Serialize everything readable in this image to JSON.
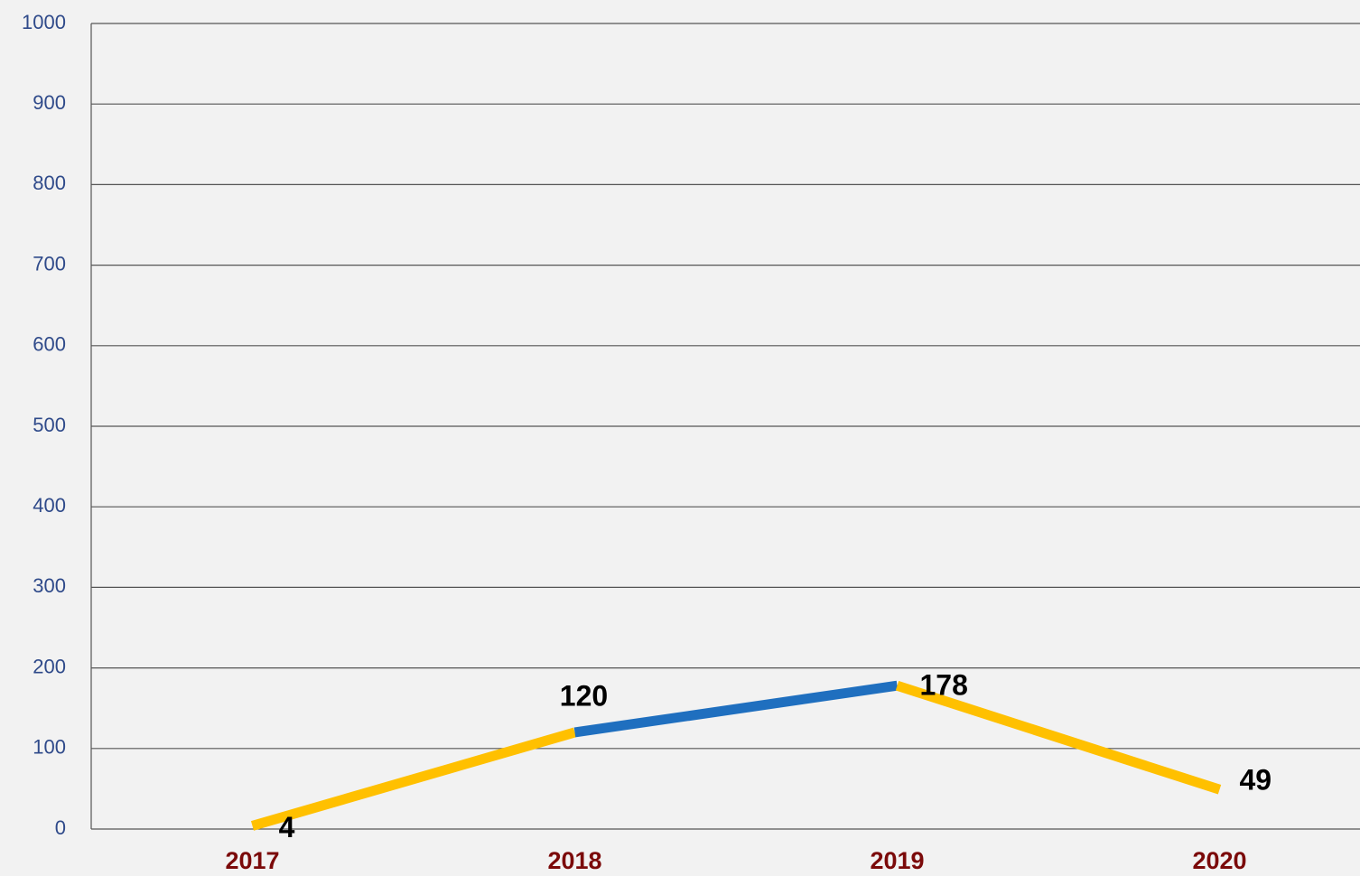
{
  "chart_data": {
    "type": "line",
    "categories": [
      "2017",
      "2018",
      "2019",
      "2020"
    ],
    "values": [
      4,
      120,
      178,
      49
    ],
    "segment_colors": [
      "#ffc000",
      "#1f6fbf",
      "#ffc000"
    ],
    "ylim": [
      0,
      1000
    ],
    "yticks": [
      0,
      100,
      200,
      300,
      400,
      500,
      600,
      700,
      800,
      900,
      1000
    ],
    "grid": true
  }
}
